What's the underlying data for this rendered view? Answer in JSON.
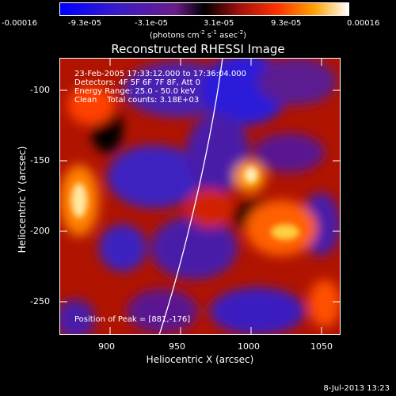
{
  "colorbar": {
    "labels": [
      "-0.00016",
      "-9.3e-05",
      "-3.1e-05",
      "3.1e-05",
      "9.3e-05",
      "0.00016"
    ],
    "units_pre": "(photons cm",
    "units_exp1": "-2",
    "units_mid": " s",
    "units_exp2": "-1",
    "units_mid2": " asec",
    "units_exp3": "-2",
    "units_post": ")"
  },
  "title": "Reconstructed RHESSI Image",
  "info": {
    "line1": "23-Feb-2005 17:33:12.000 to 17:36:04.000",
    "line2": "Detectors: 4F 5F 6F 7F 8F, Att 0",
    "line3": "Energy Range: 25.0 - 50.0 keV",
    "line4": "Clean    Total counts: 3.18E+03",
    "peak": "Position of Peak = [881,-176]"
  },
  "axes": {
    "xlabel": "Heliocentric X (arcsec)",
    "ylabel": "Heliocentric Y (arcsec)",
    "xticks": [
      "900",
      "950",
      "1000",
      "1050"
    ],
    "yticks": [
      "-100",
      "-150",
      "-200",
      "-250"
    ]
  },
  "datestamp": "8-Jul-2013 13:23"
}
